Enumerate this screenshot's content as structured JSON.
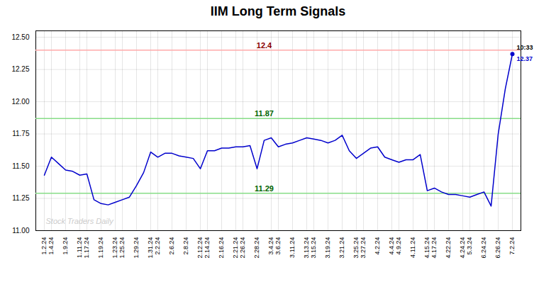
{
  "chart_data": {
    "type": "line",
    "title": "IIM Long Term Signals",
    "categories": [
      "1.2.24",
      "1.4.24",
      null,
      "1.9.24",
      null,
      "1.11.24",
      "1.17.24",
      null,
      "1.19.24",
      null,
      "1.23.24",
      "1.25.24",
      null,
      "1.29.24",
      null,
      "1.31.24",
      "2.2.24",
      null,
      "2.6.24",
      null,
      "2.8.24",
      null,
      "2.12.24",
      "2.14.24",
      null,
      "2.16.24",
      null,
      "2.21.24",
      "2.26.24",
      null,
      "2.28.24",
      null,
      "3.4.24",
      "3.6.24",
      null,
      "3.11.24",
      null,
      "3.13.24",
      "3.15.24",
      null,
      "3.19.24",
      null,
      "3.21.24",
      null,
      "3.25.24",
      "3.27.24",
      null,
      "4.2.24",
      null,
      "4.4.24",
      "4.9.24",
      null,
      "4.11.24",
      null,
      "4.15.24",
      "4.17.24",
      null,
      "4.22.24",
      null,
      "4.24.24",
      "5.3.24",
      null,
      "6.24.24",
      null,
      "6.26.24",
      null,
      "7.2.24"
    ],
    "values": [
      11.43,
      11.57,
      11.52,
      11.47,
      11.46,
      11.43,
      11.44,
      11.24,
      11.21,
      11.2,
      11.22,
      11.24,
      11.26,
      11.35,
      11.45,
      11.61,
      11.57,
      11.6,
      11.6,
      11.58,
      11.57,
      11.56,
      11.48,
      11.62,
      11.62,
      11.64,
      11.64,
      11.65,
      11.65,
      11.66,
      11.48,
      11.7,
      11.72,
      11.65,
      11.67,
      11.68,
      11.7,
      11.72,
      11.71,
      11.7,
      11.68,
      11.7,
      11.74,
      11.62,
      11.56,
      11.6,
      11.64,
      11.65,
      11.57,
      11.55,
      11.53,
      11.55,
      11.55,
      11.59,
      11.31,
      11.33,
      11.3,
      11.28,
      11.28,
      11.27,
      11.26,
      11.28,
      11.3,
      11.19,
      11.75,
      12.1,
      12.37
    ],
    "color": "#0000cc",
    "ylim": [
      11.0,
      12.55
    ],
    "yticks": [
      {
        "value": 11.0,
        "label": "11.00"
      },
      11.25,
      {
        "value": 11.5,
        "label": "11.50"
      },
      11.75,
      {
        "value": 12.0,
        "label": "12.00"
      },
      12.25,
      {
        "value": 12.5,
        "label": "12.50"
      }
    ],
    "grid": true,
    "annotations": [
      {
        "text": "12.4",
        "y": 12.4,
        "line_color": "#ffaaaa",
        "color": "darkred"
      },
      {
        "text": "11.87",
        "y": 11.87,
        "line_color": "#88dd88",
        "color": "darkgreen"
      },
      {
        "text": "11.29",
        "y": 11.29,
        "line_color": "#88dd88",
        "color": "darkgreen"
      }
    ],
    "last_point": {
      "time": "10:33",
      "value_label": "12.37",
      "color": "#0000cc"
    },
    "watermark": "Stock Traders Daily"
  }
}
